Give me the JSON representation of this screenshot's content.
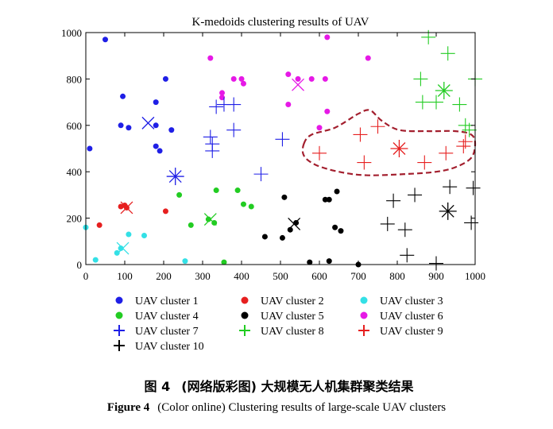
{
  "chart_data": {
    "type": "scatter",
    "title": "K-medoids clustering results of  UAV",
    "xlim": [
      0,
      1000
    ],
    "ylim": [
      0,
      1000
    ],
    "xticks": [
      "0",
      "100",
      "200",
      "300",
      "400",
      "500",
      "600",
      "700",
      "800",
      "900",
      "1000"
    ],
    "yticks": [
      "0",
      "200",
      "400",
      "600",
      "800",
      "1000"
    ],
    "grid": false,
    "legend_placement": "bottom",
    "series": [
      {
        "name": "UAV cluster 1",
        "color": "#1f1fe6",
        "marker": "dot",
        "points": [
          [
            50,
            970
          ],
          [
            10,
            500
          ],
          [
            90,
            600
          ],
          [
            110,
            590
          ],
          [
            95,
            725
          ],
          [
            180,
            700
          ],
          [
            180,
            600
          ],
          [
            180,
            510
          ],
          [
            190,
            490
          ],
          [
            205,
            800
          ],
          [
            220,
            580
          ]
        ],
        "medoid": [
          160,
          610
        ]
      },
      {
        "name": "UAV cluster 2",
        "color": "#e61f1f",
        "marker": "dot",
        "points": [
          [
            35,
            170
          ],
          [
            90,
            250
          ],
          [
            100,
            255
          ],
          [
            105,
            245
          ],
          [
            205,
            230
          ]
        ],
        "medoid": [
          105,
          245
        ]
      },
      {
        "name": "UAV cluster 3",
        "color": "#33e0e6",
        "marker": "dot",
        "points": [
          [
            0,
            160
          ],
          [
            25,
            20
          ],
          [
            80,
            50
          ],
          [
            90,
            70
          ],
          [
            110,
            130
          ],
          [
            150,
            125
          ],
          [
            255,
            15
          ]
        ],
        "medoid": [
          95,
          70
        ]
      },
      {
        "name": "UAV cluster 4",
        "color": "#22cc22",
        "marker": "dot",
        "points": [
          [
            240,
            300
          ],
          [
            270,
            170
          ],
          [
            315,
            195
          ],
          [
            330,
            180
          ],
          [
            335,
            320
          ],
          [
            355,
            10
          ],
          [
            390,
            320
          ],
          [
            405,
            260
          ],
          [
            425,
            250
          ]
        ],
        "medoid": [
          320,
          195
        ]
      },
      {
        "name": "UAV cluster 5",
        "color": "#000000",
        "marker": "dot",
        "points": [
          [
            460,
            120
          ],
          [
            505,
            115
          ],
          [
            510,
            290
          ],
          [
            525,
            150
          ],
          [
            540,
            180
          ],
          [
            575,
            10
          ],
          [
            615,
            280
          ],
          [
            625,
            280
          ],
          [
            625,
            15
          ],
          [
            640,
            160
          ],
          [
            645,
            315
          ],
          [
            655,
            145
          ],
          [
            700,
            0
          ]
        ],
        "medoid": [
          535,
          175
        ]
      },
      {
        "name": "UAV cluster 6",
        "color": "#e619e6",
        "marker": "dot",
        "points": [
          [
            320,
            890
          ],
          [
            350,
            720
          ],
          [
            350,
            740
          ],
          [
            380,
            800
          ],
          [
            400,
            800
          ],
          [
            405,
            780
          ],
          [
            520,
            820
          ],
          [
            520,
            690
          ],
          [
            545,
            800
          ],
          [
            580,
            800
          ],
          [
            600,
            590
          ],
          [
            615,
            800
          ],
          [
            620,
            980
          ],
          [
            620,
            660
          ],
          [
            725,
            890
          ]
        ],
        "medoid": [
          545,
          775
        ]
      },
      {
        "name": "UAV cluster 7",
        "color": "#1f1fe6",
        "marker": "plus",
        "points": [
          [
            320,
            550
          ],
          [
            325,
            520
          ],
          [
            325,
            490
          ],
          [
            335,
            680
          ],
          [
            355,
            690
          ],
          [
            380,
            690
          ],
          [
            380,
            580
          ],
          [
            450,
            390
          ],
          [
            505,
            540
          ]
        ],
        "medoid": [
          230,
          380
        ]
      },
      {
        "name": "UAV cluster 8",
        "color": "#22cc22",
        "marker": "plus",
        "points": [
          [
            865,
            700
          ],
          [
            860,
            800
          ],
          [
            880,
            980
          ],
          [
            900,
            700
          ],
          [
            930,
            910
          ],
          [
            960,
            690
          ],
          [
            975,
            600
          ],
          [
            985,
            580
          ],
          [
            1000,
            800
          ]
        ],
        "medoid": [
          920,
          750
        ]
      },
      {
        "name": "UAV cluster 9",
        "color": "#e61f1f",
        "marker": "plus",
        "points": [
          [
            600,
            480
          ],
          [
            705,
            560
          ],
          [
            715,
            440
          ],
          [
            750,
            595
          ],
          [
            870,
            440
          ],
          [
            925,
            480
          ],
          [
            970,
            510
          ],
          [
            975,
            530
          ]
        ],
        "medoid": [
          805,
          500
        ]
      },
      {
        "name": "UAV cluster 10",
        "color": "#000000",
        "marker": "plus",
        "points": [
          [
            775,
            175
          ],
          [
            790,
            275
          ],
          [
            820,
            150
          ],
          [
            825,
            40
          ],
          [
            845,
            300
          ],
          [
            900,
            5
          ],
          [
            935,
            335
          ],
          [
            990,
            180
          ],
          [
            995,
            330
          ]
        ],
        "medoid": [
          930,
          230
        ]
      }
    ],
    "annotation": {
      "shape": "dashed-outline",
      "color": "#a31f2e",
      "outline": [
        [
          560,
          520
        ],
        [
          580,
          560
        ],
        [
          640,
          590
        ],
        [
          700,
          650
        ],
        [
          730,
          665
        ],
        [
          760,
          620
        ],
        [
          805,
          580
        ],
        [
          880,
          575
        ],
        [
          950,
          575
        ],
        [
          990,
          560
        ],
        [
          1000,
          520
        ],
        [
          990,
          460
        ],
        [
          950,
          420
        ],
        [
          900,
          400
        ],
        [
          820,
          390
        ],
        [
          720,
          385
        ],
        [
          650,
          400
        ],
        [
          590,
          430
        ],
        [
          560,
          470
        ]
      ]
    }
  },
  "legend": [
    {
      "label": "UAV cluster 1",
      "color": "#1f1fe6",
      "marker": "dot"
    },
    {
      "label": "UAV cluster 2",
      "color": "#e61f1f",
      "marker": "dot"
    },
    {
      "label": "UAV cluster 3",
      "color": "#33e0e6",
      "marker": "dot"
    },
    {
      "label": "UAV cluster 4",
      "color": "#22cc22",
      "marker": "dot"
    },
    {
      "label": "UAV cluster 5",
      "color": "#000000",
      "marker": "dot"
    },
    {
      "label": "UAV cluster 6",
      "color": "#e619e6",
      "marker": "dot"
    },
    {
      "label": "UAV cluster 7",
      "color": "#1f1fe6",
      "marker": "plus"
    },
    {
      "label": "UAV cluster 8",
      "color": "#22cc22",
      "marker": "plus"
    },
    {
      "label": "UAV cluster 9",
      "color": "#e61f1f",
      "marker": "plus"
    },
    {
      "label": "UAV cluster 10",
      "color": "#000000",
      "marker": "plus"
    }
  ],
  "caption": {
    "cn_label": "图 4",
    "cn_text": "(网络版彩图) 大规模无人机集群聚类结果",
    "en_label": "Figure 4",
    "en_text": "(Color online) Clustering results of large-scale UAV clusters"
  }
}
